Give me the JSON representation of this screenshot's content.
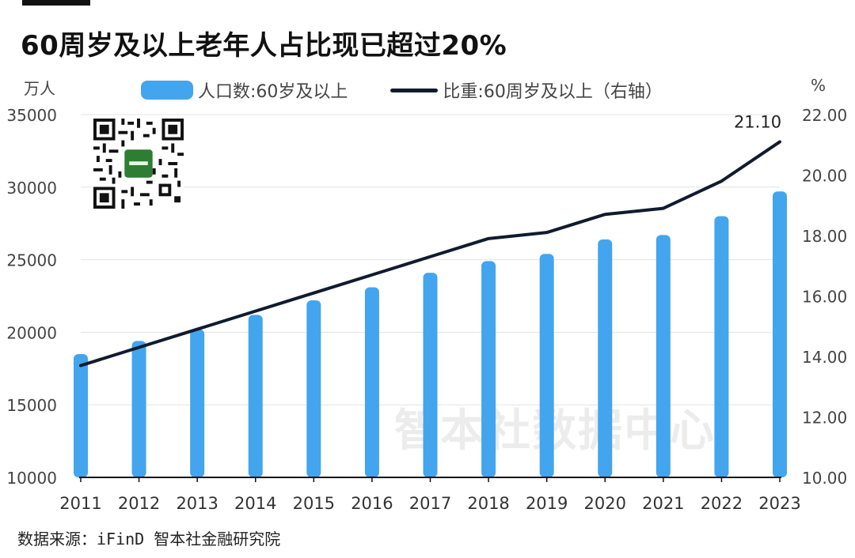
{
  "title": "60周岁及以上老年人占比现已超过20%",
  "left_unit": "万人",
  "right_unit": "%",
  "legend": {
    "bar_label": "人口数:60岁及以上",
    "line_label": "比重:60周岁及以上（右轴）"
  },
  "source": "数据来源：iFinD 智本社金融研究院",
  "watermark": "智本社数据中心",
  "colors": {
    "bar": "#42a5ee",
    "line": "#111b2e",
    "grid": "#e3e3e3"
  },
  "chart_data": {
    "type": "bar",
    "categories": [
      "2011",
      "2012",
      "2013",
      "2014",
      "2015",
      "2016",
      "2017",
      "2018",
      "2019",
      "2020",
      "2021",
      "2022",
      "2023"
    ],
    "series": [
      {
        "name": "人口数:60岁及以上",
        "type": "bar",
        "axis": "left",
        "values": [
          18500,
          19400,
          20200,
          21200,
          22200,
          23100,
          24100,
          24900,
          25400,
          26400,
          26700,
          28000,
          29700
        ]
      },
      {
        "name": "比重:60周岁及以上（右轴）",
        "type": "line",
        "axis": "right",
        "values": [
          13.7,
          14.3,
          14.9,
          15.5,
          16.1,
          16.7,
          17.3,
          17.9,
          18.1,
          18.7,
          18.9,
          19.8,
          21.1
        ]
      }
    ],
    "y_left": {
      "range": [
        10000,
        35000
      ],
      "ticks": [
        "10000",
        "15000",
        "20000",
        "25000",
        "30000",
        "35000"
      ]
    },
    "y_right": {
      "range": [
        10,
        22
      ],
      "ticks": [
        "10.00",
        "12.00",
        "14.00",
        "16.00",
        "18.00",
        "20.00",
        "22.00"
      ]
    },
    "annotations": [
      {
        "category": "2023",
        "label": "21.10"
      }
    ],
    "grid": true,
    "legend_position": "top"
  }
}
